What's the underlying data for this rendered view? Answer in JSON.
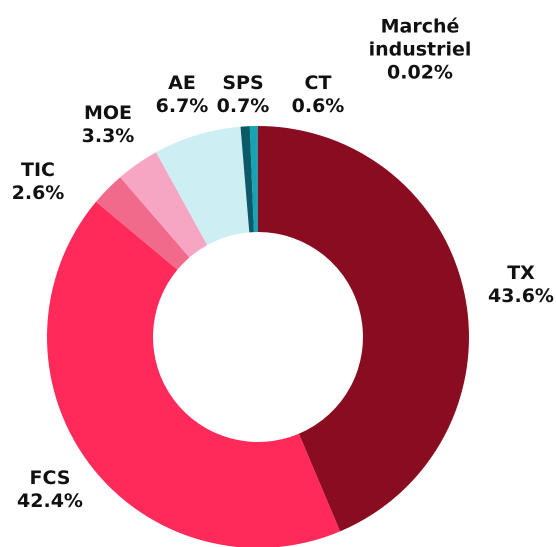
{
  "chart_data": {
    "type": "donut",
    "categories": [
      "TX",
      "FCS",
      "TIC",
      "MOE",
      "AE",
      "SPS",
      "CT",
      "Marché industriel"
    ],
    "values": [
      43.6,
      42.4,
      2.6,
      3.3,
      6.7,
      0.7,
      0.6,
      0.02
    ],
    "value_labels": [
      "43.6%",
      "42.4%",
      "2.6%",
      "3.3%",
      "6.7%",
      "0.7%",
      "0.6%",
      "0.02%"
    ],
    "colors": [
      "#8a0c21",
      "#ff2a5a",
      "#f26a8b",
      "#f6a6c2",
      "#cdeef3",
      "#0c5968",
      "#17a3b4",
      "#0c5968"
    ]
  }
}
